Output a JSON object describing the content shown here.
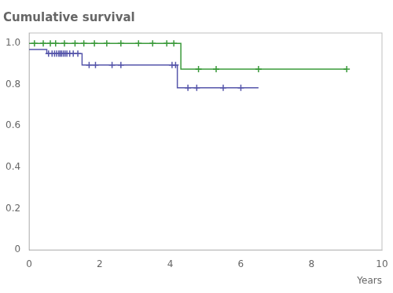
{
  "chart_data": {
    "type": "line",
    "title": "Cumulative survival",
    "xlabel": "Years",
    "xlim": [
      0,
      10
    ],
    "ylim": [
      0,
      1.05
    ],
    "xticks": [
      0,
      2,
      4,
      6,
      8,
      10
    ],
    "yticks": [
      0,
      0.2,
      0.4,
      0.6,
      0.8,
      {
        "value": 1.0,
        "label": "1.0"
      }
    ],
    "grid": false,
    "series": [
      {
        "type": "line",
        "color": "#3a9a3a",
        "x": [
          0.0,
          4.3,
          4.3,
          9.0
        ],
        "values": [
          1.0,
          1.0,
          0.875,
          0.875
        ]
      },
      {
        "type": "line",
        "color": "#5555aa",
        "x": [
          0.0,
          0.5,
          0.5,
          1.5,
          1.5,
          4.2,
          4.2,
          6.5
        ],
        "values": [
          0.97,
          0.97,
          0.95,
          0.95,
          0.895,
          0.895,
          0.785,
          0.785
        ]
      },
      {
        "type": "scatter",
        "marker": "plus",
        "color": "#3a9a3a",
        "x": [
          0.15,
          0.4,
          0.6,
          0.75,
          1.0,
          1.3,
          1.55,
          1.85,
          2.2,
          2.6,
          3.1,
          3.5,
          3.9,
          4.1
        ],
        "values": [
          1.0,
          1.0,
          1.0,
          1.0,
          1.0,
          1.0,
          1.0,
          1.0,
          1.0,
          1.0,
          1.0,
          1.0,
          1.0,
          1.0
        ]
      },
      {
        "type": "scatter",
        "marker": "plus",
        "color": "#3a9a3a",
        "x": [
          4.8,
          5.3,
          6.5,
          9.0
        ],
        "values": [
          0.875,
          0.875,
          0.875,
          0.875
        ]
      },
      {
        "type": "scatter",
        "marker": "plus",
        "color": "#5555aa",
        "x": [
          0.55,
          0.65,
          0.72,
          0.78,
          0.84,
          0.88,
          0.92,
          0.97,
          1.02,
          1.07,
          1.15,
          1.25,
          1.38
        ],
        "values": [
          0.95,
          0.95,
          0.95,
          0.95,
          0.95,
          0.95,
          0.95,
          0.95,
          0.95,
          0.95,
          0.95,
          0.95,
          0.95
        ]
      },
      {
        "type": "scatter",
        "marker": "plus",
        "color": "#5555aa",
        "x": [
          1.7,
          1.88,
          2.35,
          2.6,
          4.05,
          4.15
        ],
        "values": [
          0.895,
          0.895,
          0.895,
          0.895,
          0.895,
          0.895
        ]
      },
      {
        "type": "scatter",
        "marker": "plus",
        "color": "#5555aa",
        "x": [
          4.5,
          4.75,
          5.5,
          6.0
        ],
        "values": [
          0.785,
          0.785,
          0.785,
          0.785
        ]
      }
    ]
  }
}
